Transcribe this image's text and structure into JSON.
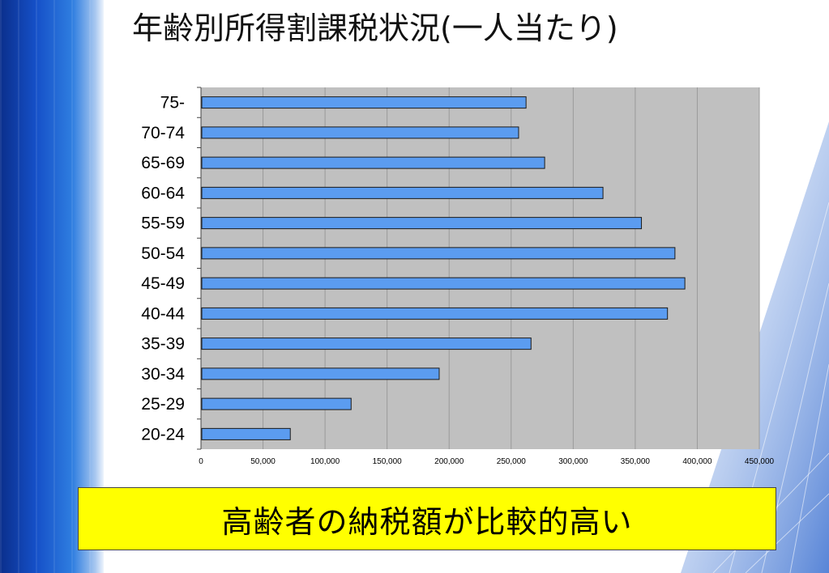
{
  "title": "年齢別所得割課税状況(一人当たり)",
  "note": "高齢者の納税額が比較的高い",
  "colors": {
    "bar": "#5b9cf0",
    "bar_border": "#1a1a1a",
    "plot_bg": "#c0c0c0",
    "grid": "#9a9a9a",
    "note_bg": "#ffff00"
  },
  "chart_data": {
    "type": "bar",
    "orientation": "horizontal",
    "categories": [
      "75-",
      "70-74",
      "65-69",
      "60-64",
      "55-59",
      "50-54",
      "45-49",
      "40-44",
      "35-39",
      "30-34",
      "25-29",
      "20-24"
    ],
    "values": [
      262000,
      256000,
      277000,
      324000,
      355000,
      382000,
      390000,
      376000,
      266000,
      192000,
      121000,
      72000
    ],
    "xlim": [
      0,
      450000
    ],
    "x_ticks": [
      "0",
      "50,000",
      "100,000",
      "150,000",
      "200,000",
      "250,000",
      "300,000",
      "350,000",
      "400,000",
      "450,000"
    ],
    "x_tick_values": [
      0,
      50000,
      100000,
      150000,
      200000,
      250000,
      300000,
      350000,
      400000,
      450000
    ],
    "grid": true,
    "legend": "none"
  }
}
